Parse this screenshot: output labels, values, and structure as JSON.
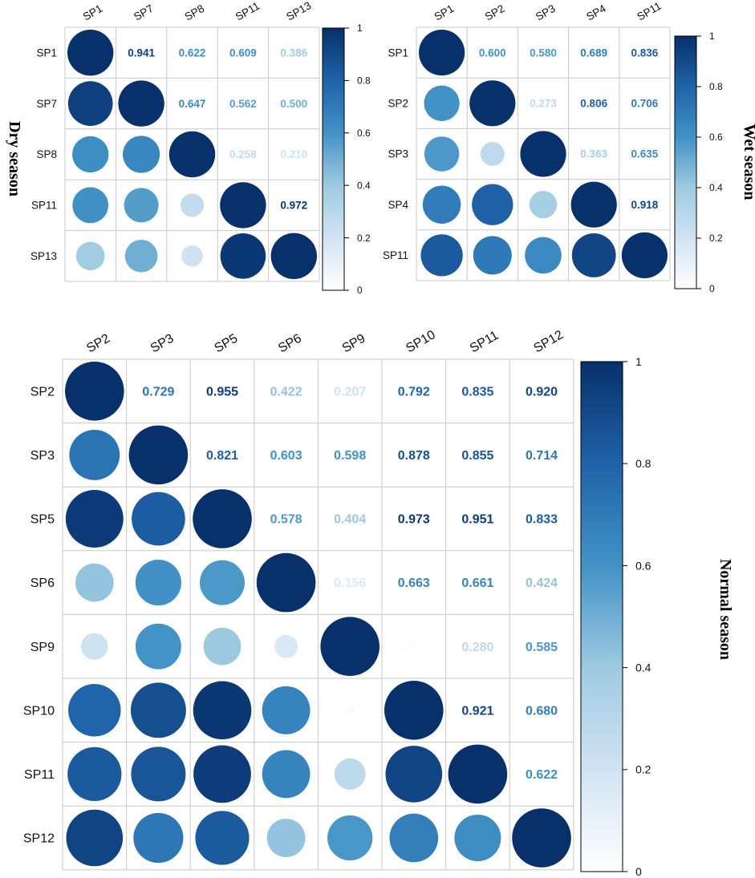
{
  "chart_data": [
    {
      "type": "heatmap",
      "subtype": "correlation-matrix",
      "title": "Dry season",
      "variables": [
        "SP1",
        "SP7",
        "SP8",
        "SP11",
        "SP13"
      ],
      "matrix": [
        [
          1,
          0.941,
          0.622,
          0.609,
          0.386
        ],
        [
          0.941,
          1,
          0.647,
          0.562,
          0.5
        ],
        [
          0.622,
          0.647,
          1,
          0.258,
          0.21
        ],
        [
          0.609,
          0.562,
          0.258,
          1,
          0.972
        ],
        [
          0.386,
          0.5,
          0.21,
          0.972,
          1
        ]
      ],
      "upper_labels": [
        [
          "",
          "0.941",
          "0.622",
          "0.609",
          "0.386"
        ],
        [
          "",
          "",
          "0.647",
          "0.562",
          "0.500"
        ],
        [
          "",
          "",
          "",
          "0.258",
          "0.210"
        ],
        [
          "",
          "",
          "",
          "",
          "0.972"
        ],
        [
          "",
          "",
          "",
          "",
          ""
        ]
      ],
      "colorbar": {
        "range": [
          0,
          1
        ],
        "ticks": [
          "0",
          "0.2",
          "0.4",
          "0.6",
          "0.8",
          "1"
        ]
      }
    },
    {
      "type": "heatmap",
      "subtype": "correlation-matrix",
      "title": "Wet season",
      "variables": [
        "SP1",
        "SP2",
        "SP3",
        "SP4",
        "SP11"
      ],
      "matrix": [
        [
          1,
          0.6,
          0.58,
          0.689,
          0.836
        ],
        [
          0.6,
          1,
          0.273,
          0.806,
          0.706
        ],
        [
          0.58,
          0.273,
          1,
          0.363,
          0.635
        ],
        [
          0.689,
          0.806,
          0.363,
          1,
          0.918
        ],
        [
          0.836,
          0.706,
          0.635,
          0.918,
          1
        ]
      ],
      "upper_labels": [
        [
          "",
          "0.600",
          "0.580",
          "0.689",
          "0.836"
        ],
        [
          "",
          "",
          "0.273",
          "0.806",
          "0.706"
        ],
        [
          "",
          "",
          "",
          "0.363",
          "0.635"
        ],
        [
          "",
          "",
          "",
          "",
          "0.918"
        ],
        [
          "",
          "",
          "",
          "",
          ""
        ]
      ],
      "colorbar": {
        "range": [
          0,
          1
        ],
        "ticks": [
          "0",
          "0.2",
          "0.4",
          "0.6",
          "0.8",
          "1"
        ]
      }
    },
    {
      "type": "heatmap",
      "subtype": "correlation-matrix",
      "title": "Normal season",
      "variables": [
        "SP2",
        "SP3",
        "SP5",
        "SP6",
        "SP9",
        "SP10",
        "SP11",
        "SP12"
      ],
      "matrix": [
        [
          1,
          0.729,
          0.955,
          0.422,
          0.207,
          0.792,
          0.835,
          0.92
        ],
        [
          0.729,
          1,
          0.821,
          0.603,
          0.598,
          0.878,
          0.855,
          0.714
        ],
        [
          0.955,
          0.821,
          1,
          0.578,
          0.404,
          0.973,
          0.951,
          0.833
        ],
        [
          0.422,
          0.603,
          0.578,
          1,
          0.156,
          0.663,
          0.661,
          0.424
        ],
        [
          0.207,
          0.598,
          0.404,
          0.156,
          1,
          0.025,
          0.28,
          0.585
        ],
        [
          0.792,
          0.878,
          0.973,
          0.663,
          0.025,
          1,
          0.921,
          0.68
        ],
        [
          0.835,
          0.855,
          0.951,
          0.661,
          0.28,
          0.921,
          1,
          0.622
        ],
        [
          0.92,
          0.714,
          0.833,
          0.424,
          0.585,
          0.68,
          0.622,
          1
        ]
      ],
      "upper_labels": [
        [
          "",
          "0.729",
          "0.955",
          "0.422",
          "0.207",
          "0.792",
          "0.835",
          "0.920"
        ],
        [
          "",
          "",
          "0.821",
          "0.603",
          "0.598",
          "0.878",
          "0.855",
          "0.714"
        ],
        [
          "",
          "",
          "",
          "0.578",
          "0.404",
          "0.973",
          "0.951",
          "0.833"
        ],
        [
          "",
          "",
          "",
          "",
          "0.156",
          "0.663",
          "0.661",
          "0.424"
        ],
        [
          "",
          "",
          "",
          "",
          "",
          "0.025",
          "0.280",
          "0.585"
        ],
        [
          "",
          "",
          "",
          "",
          "",
          "",
          "0.921",
          "0.680"
        ],
        [
          "",
          "",
          "",
          "",
          "",
          "",
          "",
          "0.622"
        ],
        [
          "",
          "",
          "",
          "",
          "",
          "",
          "",
          ""
        ]
      ],
      "colorbar": {
        "range": [
          0,
          1
        ],
        "ticks": [
          "0",
          "0.2",
          "0.4",
          "0.6",
          "0.8",
          "1"
        ]
      }
    }
  ],
  "colors": {
    "scale_low": "#f7fbff",
    "scale_mid": "#4292c6",
    "scale_high": "#08306b",
    "grid": "#c8c8c8"
  }
}
